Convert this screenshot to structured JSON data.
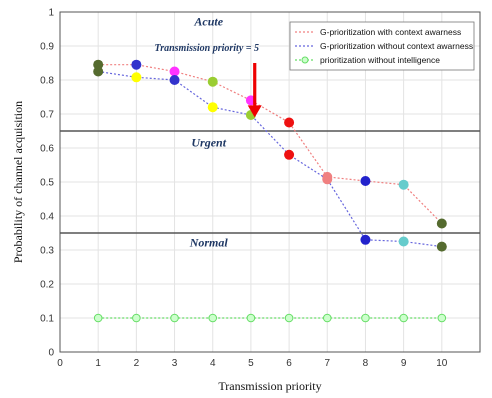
{
  "chart_data": {
    "type": "line",
    "xlabel": "Transmission priority",
    "ylabel": "Probability of channel acquisition",
    "xlim": [
      0,
      11
    ],
    "ylim": [
      0,
      1
    ],
    "xticks": [
      "0",
      "1",
      "2",
      "3",
      "4",
      "5",
      "6",
      "7",
      "8",
      "9",
      "10"
    ],
    "yticks": [
      "0",
      "0.1",
      "0.2",
      "0.3",
      "0.4",
      "0.5",
      "0.6",
      "0.7",
      "0.8",
      "0.9",
      "1"
    ],
    "grid": true,
    "legend_position": "top-right",
    "x": [
      1,
      2,
      3,
      4,
      5,
      6,
      7,
      8,
      9,
      10
    ],
    "point_colors": [
      "#556b2f",
      "#3333cc",
      "#ff33ff",
      "#9acd32",
      "#9acd32",
      "#ee1111",
      "#f08080",
      "#2222cc",
      "#66cccc",
      "#556b2f"
    ],
    "series": [
      {
        "name": "G-prioritization with context awarness",
        "line_color": "#f08080",
        "values": [
          0.845,
          0.845,
          0.825,
          0.795,
          0.74,
          0.675,
          0.515,
          0.503,
          0.492,
          0.378
        ],
        "point_colors": [
          "#556b2f",
          "#3333cc",
          "#ff33ff",
          "#9acd32",
          "#ff33ff",
          "#ee1111",
          "#f08080",
          "#2222cc",
          "#66cccc",
          "#556b2f"
        ]
      },
      {
        "name": "G-prioritization without context awarness",
        "line_color": "#6666dd",
        "values": [
          0.825,
          0.808,
          0.8,
          0.72,
          0.697,
          0.58,
          0.508,
          0.33,
          0.325,
          0.31
        ],
        "point_colors": [
          "#556b2f",
          "#ffff00",
          "#3333cc",
          "#ffff00",
          "#9acd32",
          "#ee1111",
          "#f08080",
          "#2222cc",
          "#66cccc",
          "#556b2f"
        ]
      },
      {
        "name": "prioritization without intelligence",
        "line_color": "#66dd66",
        "values": [
          0.1,
          0.1,
          0.1,
          0.1,
          0.1,
          0.1,
          0.1,
          0.1,
          0.1,
          0.1
        ],
        "point_colors": [
          "#ccffcc",
          "#ccffcc",
          "#ccffcc",
          "#ccffcc",
          "#ccffcc",
          "#ccffcc",
          "#ccffcc",
          "#ccffcc",
          "#ccffcc",
          "#ccffcc"
        ]
      }
    ],
    "thresholds": [
      {
        "y": 0.65,
        "color": "#555555"
      },
      {
        "y": 0.35,
        "color": "#555555"
      }
    ],
    "zones": [
      {
        "label": "Acute",
        "x": 4,
        "y": 0.96
      },
      {
        "label": "Urgent",
        "x": 4,
        "y": 0.605
      },
      {
        "label": "Normal",
        "x": 4,
        "y": 0.31
      }
    ],
    "annotation": {
      "text": "Transmission priority  = 5",
      "text_x": 4,
      "text_y": 0.885,
      "arrow_x": 5.1,
      "arrow_from_y": 0.85,
      "arrow_to_y": 0.69,
      "color": "#ee0000"
    }
  }
}
